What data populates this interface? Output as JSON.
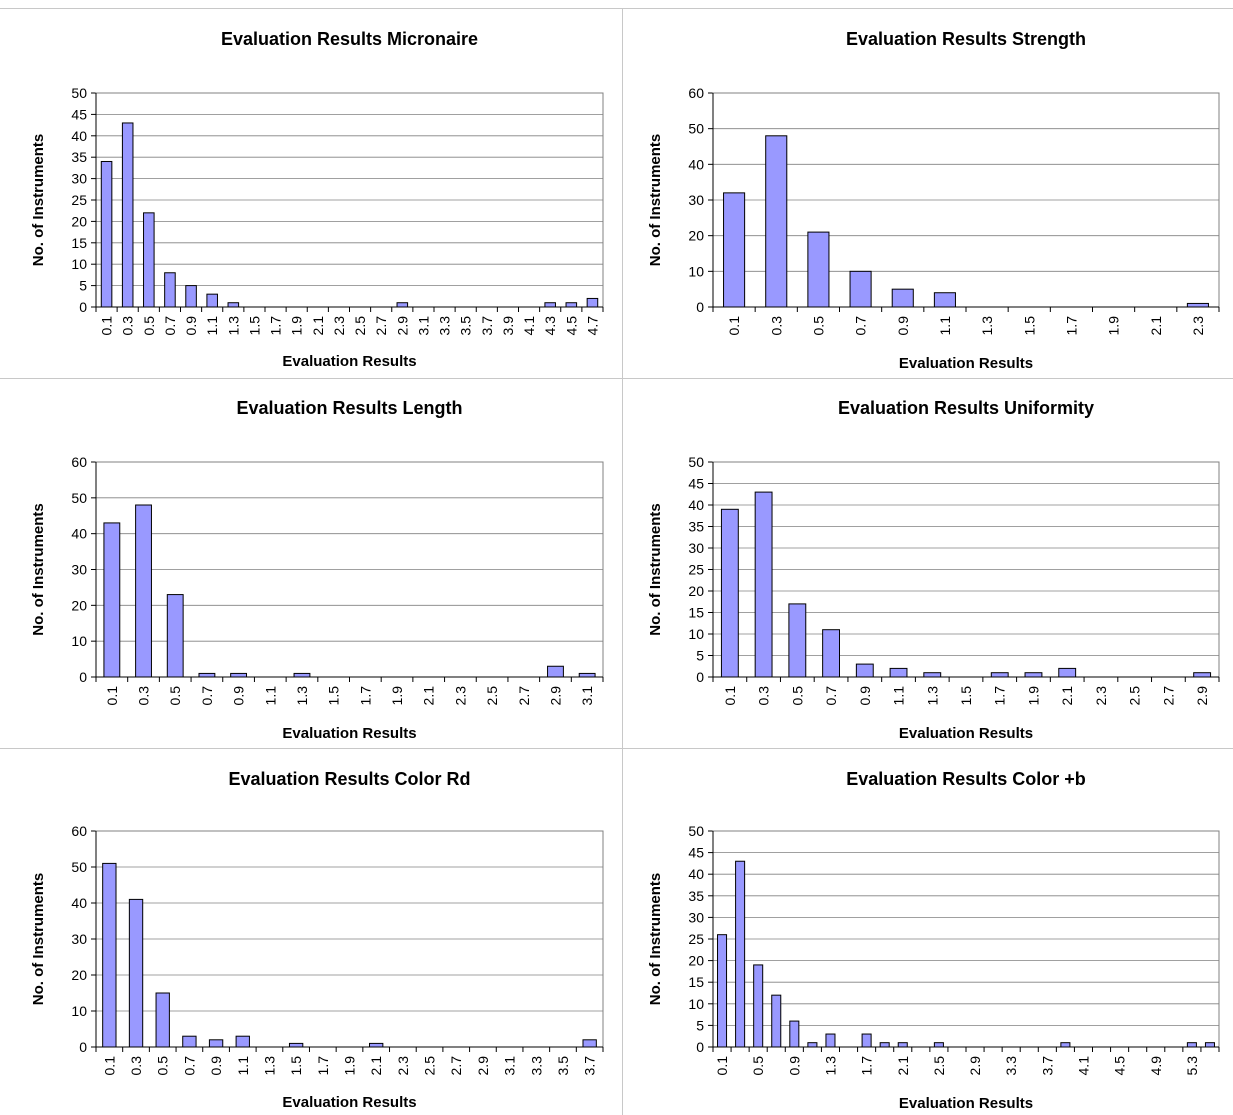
{
  "chart_data": [
    {
      "type": "bar",
      "title": "Evaluation Results Micronaire",
      "xlabel": "Evaluation Results",
      "ylabel": "No. of Instruments",
      "ylim": [
        0,
        50
      ],
      "ystep": 5,
      "grid": true,
      "legend": "none",
      "categories": [
        "0.1",
        "0.3",
        "0.5",
        "0.7",
        "0.9",
        "1.1",
        "1.3",
        "1.5",
        "1.7",
        "1.9",
        "2.1",
        "2.3",
        "2.5",
        "2.7",
        "2.9",
        "3.1",
        "3.3",
        "3.5",
        "3.7",
        "3.9",
        "4.1",
        "4.3",
        "4.5",
        "4.7"
      ],
      "values": [
        34,
        43,
        22,
        8,
        5,
        3,
        1,
        0,
        0,
        0,
        0,
        0,
        0,
        0,
        1,
        0,
        0,
        0,
        0,
        0,
        0,
        1,
        1,
        2
      ]
    },
    {
      "type": "bar",
      "title": "Evaluation Results Strength",
      "xlabel": "Evaluation Results",
      "ylabel": "No. of Instruments",
      "ylim": [
        0,
        60
      ],
      "ystep": 10,
      "grid": true,
      "legend": "none",
      "categories": [
        "0.1",
        "0.3",
        "0.5",
        "0.7",
        "0.9",
        "1.1",
        "1.3",
        "1.5",
        "1.7",
        "1.9",
        "2.1",
        "2.3"
      ],
      "values": [
        32,
        48,
        21,
        10,
        5,
        4,
        0,
        0,
        0,
        0,
        0,
        1
      ]
    },
    {
      "type": "bar",
      "title": "Evaluation Results Length",
      "xlabel": "Evaluation Results",
      "ylabel": "No. of Instruments",
      "ylim": [
        0,
        60
      ],
      "ystep": 10,
      "grid": true,
      "legend": "none",
      "categories": [
        "0.1",
        "0.3",
        "0.5",
        "0.7",
        "0.9",
        "1.1",
        "1.3",
        "1.5",
        "1.7",
        "1.9",
        "2.1",
        "2.3",
        "2.5",
        "2.7",
        "2.9",
        "3.1"
      ],
      "values": [
        43,
        48,
        23,
        1,
        1,
        0,
        1,
        0,
        0,
        0,
        0,
        0,
        0,
        0,
        3,
        1
      ]
    },
    {
      "type": "bar",
      "title": "Evaluation Results Uniformity",
      "xlabel": "Evaluation Results",
      "ylabel": "No. of Instruments",
      "ylim": [
        0,
        50
      ],
      "ystep": 5,
      "grid": true,
      "legend": "none",
      "categories": [
        "0.1",
        "0.3",
        "0.5",
        "0.7",
        "0.9",
        "1.1",
        "1.3",
        "1.5",
        "1.7",
        "1.9",
        "2.1",
        "2.3",
        "2.5",
        "2.7",
        "2.9"
      ],
      "values": [
        39,
        43,
        17,
        11,
        3,
        2,
        1,
        0,
        1,
        1,
        2,
        0,
        0,
        0,
        1
      ]
    },
    {
      "type": "bar",
      "title": "Evaluation Results Color Rd",
      "xlabel": "Evaluation Results",
      "ylabel": "No. of Instruments",
      "ylim": [
        0,
        60
      ],
      "ystep": 10,
      "grid": true,
      "legend": "none",
      "categories": [
        "0.1",
        "0.3",
        "0.5",
        "0.7",
        "0.9",
        "1.1",
        "1.3",
        "1.5",
        "1.7",
        "1.9",
        "2.1",
        "2.3",
        "2.5",
        "2.7",
        "2.9",
        "3.1",
        "3.3",
        "3.5",
        "3.7"
      ],
      "values": [
        51,
        41,
        15,
        3,
        2,
        3,
        0,
        1,
        0,
        0,
        1,
        0,
        0,
        0,
        0,
        0,
        0,
        0,
        2
      ]
    },
    {
      "type": "bar",
      "title": "Evaluation Results Color +b",
      "xlabel": "Evaluation Results",
      "ylabel": "No. of Instruments",
      "ylim": [
        0,
        50
      ],
      "ystep": 5,
      "grid": true,
      "legend": "none",
      "categories": [
        "0.1",
        "0.3",
        "0.5",
        "0.7",
        "0.9",
        "1.1",
        "1.3",
        "1.5",
        "1.7",
        "1.9",
        "2.1",
        "2.3",
        "2.5",
        "2.7",
        "2.9",
        "3.1",
        "3.3",
        "3.5",
        "3.7",
        "3.9",
        "4.1",
        "4.3",
        "4.5",
        "4.7",
        "4.9",
        "5.1",
        "5.3",
        "5.5"
      ],
      "tick_labels": [
        "0.1",
        "",
        "0.5",
        "",
        "0.9",
        "",
        "1.3",
        "",
        "1.7",
        "",
        "2.1",
        "",
        "2.5",
        "",
        "2.9",
        "",
        "3.3",
        "",
        "3.7",
        "",
        "4.1",
        "",
        "4.5",
        "",
        "4.9",
        "",
        "5.3",
        ""
      ],
      "values": [
        26,
        43,
        19,
        12,
        6,
        1,
        3,
        0,
        3,
        1,
        1,
        0,
        1,
        0,
        0,
        0,
        0,
        0,
        0,
        1,
        0,
        0,
        0,
        0,
        0,
        0,
        1,
        1
      ]
    }
  ],
  "colors": {
    "bar_fill": "#9999ff",
    "bar_stroke": "#000000",
    "gridline": "#808080",
    "divider": "#c8c8c8"
  }
}
